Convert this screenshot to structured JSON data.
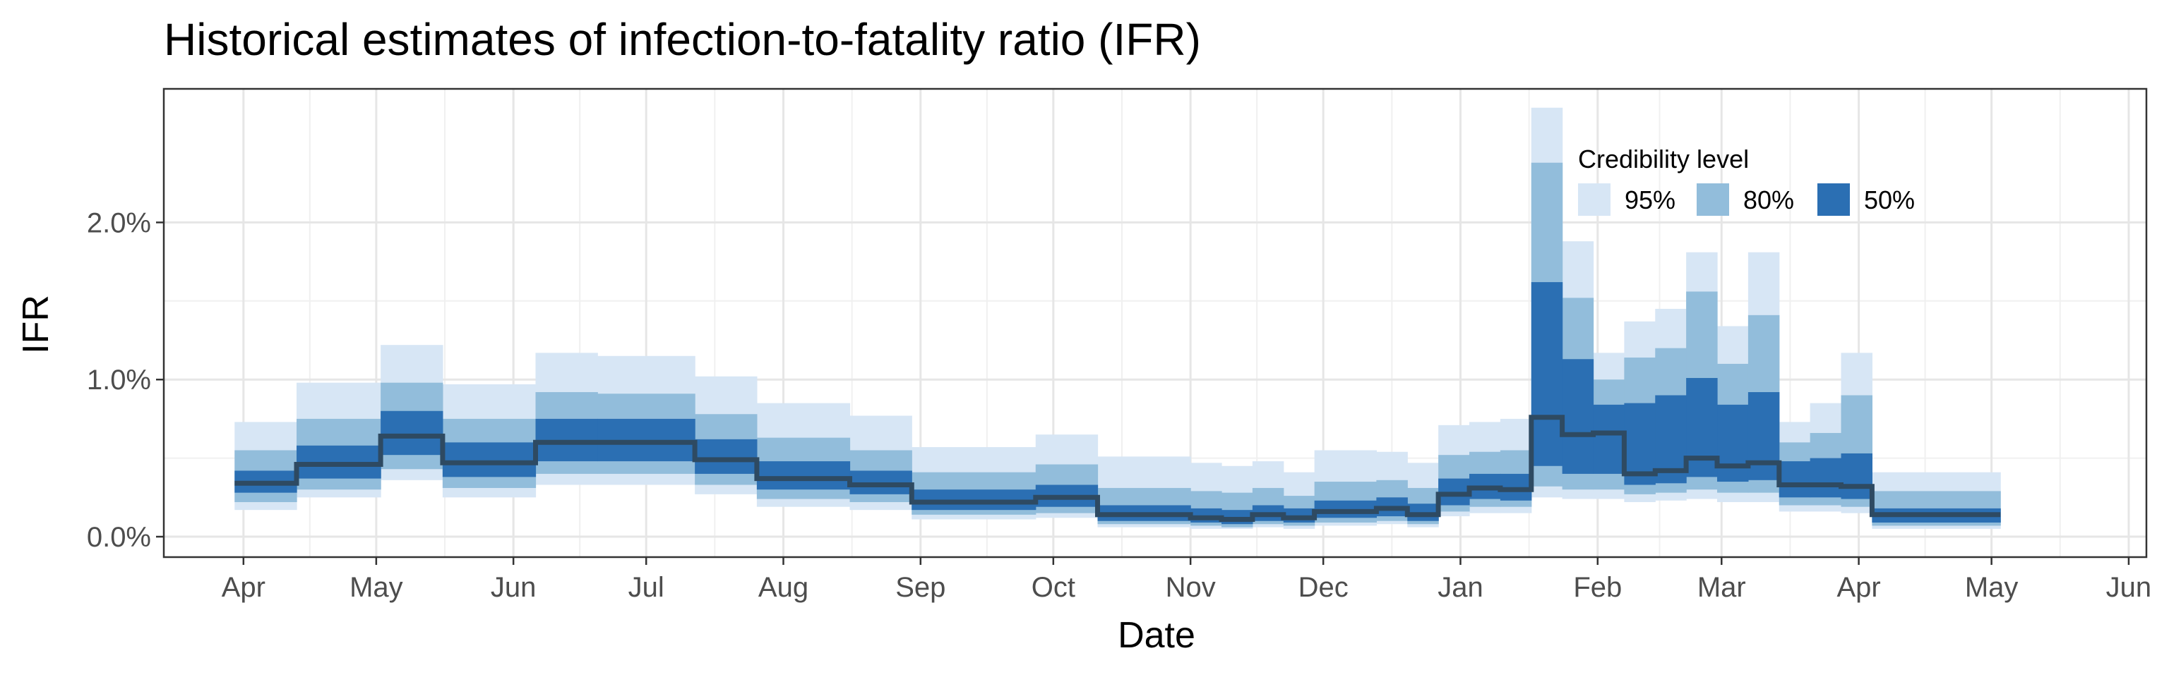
{
  "chart_data": {
    "type": "area",
    "title": "Historical estimates of infection-to-fatality ratio (IFR)",
    "xlabel": "Date",
    "ylabel": "IFR",
    "x_ticks": [
      {
        "label": "Apr",
        "date": "2020-04-01"
      },
      {
        "label": "May",
        "date": "2020-05-01"
      },
      {
        "label": "Jun",
        "date": "2020-06-01"
      },
      {
        "label": "Jul",
        "date": "2020-07-01"
      },
      {
        "label": "Aug",
        "date": "2020-08-01"
      },
      {
        "label": "Sep",
        "date": "2020-09-01"
      },
      {
        "label": "Oct",
        "date": "2020-10-01"
      },
      {
        "label": "Nov",
        "date": "2020-11-01"
      },
      {
        "label": "Dec",
        "date": "2020-12-01"
      },
      {
        "label": "Jan",
        "date": "2021-01-01"
      },
      {
        "label": "Feb",
        "date": "2021-02-01"
      },
      {
        "label": "Mar",
        "date": "2021-03-01"
      },
      {
        "label": "Apr",
        "date": "2021-04-01"
      },
      {
        "label": "May",
        "date": "2021-05-01"
      },
      {
        "label": "Jun",
        "date": "2021-06-01"
      }
    ],
    "xlim": [
      "2020-03-14",
      "2021-06-05"
    ],
    "y_ticks": [
      {
        "label": "0.0%",
        "value": 0.0
      },
      {
        "label": "1.0%",
        "value": 1.0
      },
      {
        "label": "2.0%",
        "value": 2.0
      }
    ],
    "ylim": [
      -0.13,
      2.85
    ],
    "y_unit": "%",
    "grid": true,
    "legend": {
      "title": "Credibility level",
      "position": "top-right inside",
      "items": [
        {
          "label": "95%",
          "color": "#d7e6f5"
        },
        {
          "label": "80%",
          "color": "#92bddb"
        },
        {
          "label": "50%",
          "color": "#2b6fb3"
        }
      ]
    },
    "median_color": "#2e4a62",
    "segments": [
      {
        "start": "2020-03-30",
        "end": "2020-04-13",
        "median": 0.34,
        "lo50": 0.28,
        "hi50": 0.42,
        "lo80": 0.22,
        "hi80": 0.55,
        "lo95": 0.17,
        "hi95": 0.73
      },
      {
        "start": "2020-04-13",
        "end": "2020-05-02",
        "median": 0.46,
        "lo50": 0.37,
        "hi50": 0.58,
        "lo80": 0.3,
        "hi80": 0.75,
        "lo95": 0.25,
        "hi95": 0.98
      },
      {
        "start": "2020-05-02",
        "end": "2020-05-16",
        "median": 0.64,
        "lo50": 0.52,
        "hi50": 0.8,
        "lo80": 0.43,
        "hi80": 0.98,
        "lo95": 0.36,
        "hi95": 1.22
      },
      {
        "start": "2020-05-16",
        "end": "2020-06-06",
        "median": 0.47,
        "lo50": 0.38,
        "hi50": 0.6,
        "lo80": 0.31,
        "hi80": 0.75,
        "lo95": 0.25,
        "hi95": 0.97
      },
      {
        "start": "2020-06-06",
        "end": "2020-06-20",
        "median": 0.6,
        "lo50": 0.48,
        "hi50": 0.75,
        "lo80": 0.4,
        "hi80": 0.92,
        "lo95": 0.33,
        "hi95": 1.17
      },
      {
        "start": "2020-06-20",
        "end": "2020-07-12",
        "median": 0.6,
        "lo50": 0.48,
        "hi50": 0.75,
        "lo80": 0.4,
        "hi80": 0.91,
        "lo95": 0.33,
        "hi95": 1.15
      },
      {
        "start": "2020-07-12",
        "end": "2020-07-26",
        "median": 0.49,
        "lo50": 0.4,
        "hi50": 0.62,
        "lo80": 0.33,
        "hi80": 0.78,
        "lo95": 0.27,
        "hi95": 1.02
      },
      {
        "start": "2020-07-26",
        "end": "2020-08-16",
        "median": 0.37,
        "lo50": 0.3,
        "hi50": 0.48,
        "lo80": 0.24,
        "hi80": 0.63,
        "lo95": 0.19,
        "hi95": 0.85
      },
      {
        "start": "2020-08-16",
        "end": "2020-08-30",
        "median": 0.33,
        "lo50": 0.27,
        "hi50": 0.42,
        "lo80": 0.22,
        "hi80": 0.55,
        "lo95": 0.17,
        "hi95": 0.77
      },
      {
        "start": "2020-08-30",
        "end": "2020-09-27",
        "median": 0.22,
        "lo50": 0.17,
        "hi50": 0.3,
        "lo80": 0.14,
        "hi80": 0.41,
        "lo95": 0.11,
        "hi95": 0.57
      },
      {
        "start": "2020-09-27",
        "end": "2020-10-11",
        "median": 0.25,
        "lo50": 0.19,
        "hi50": 0.33,
        "lo80": 0.15,
        "hi80": 0.46,
        "lo95": 0.12,
        "hi95": 0.65
      },
      {
        "start": "2020-10-11",
        "end": "2020-11-01",
        "median": 0.14,
        "lo50": 0.1,
        "hi50": 0.2,
        "lo80": 0.08,
        "hi80": 0.31,
        "lo95": 0.06,
        "hi95": 0.51
      },
      {
        "start": "2020-11-01",
        "end": "2020-11-08",
        "median": 0.12,
        "lo50": 0.09,
        "hi50": 0.18,
        "lo80": 0.07,
        "hi80": 0.29,
        "lo95": 0.05,
        "hi95": 0.47
      },
      {
        "start": "2020-11-08",
        "end": "2020-11-15",
        "median": 0.11,
        "lo50": 0.08,
        "hi50": 0.17,
        "lo80": 0.06,
        "hi80": 0.28,
        "lo95": 0.05,
        "hi95": 0.45
      },
      {
        "start": "2020-11-15",
        "end": "2020-11-22",
        "median": 0.14,
        "lo50": 0.1,
        "hi50": 0.2,
        "lo80": 0.08,
        "hi80": 0.31,
        "lo95": 0.06,
        "hi95": 0.48
      },
      {
        "start": "2020-11-22",
        "end": "2020-11-29",
        "median": 0.12,
        "lo50": 0.09,
        "hi50": 0.18,
        "lo80": 0.07,
        "hi80": 0.26,
        "lo95": 0.05,
        "hi95": 0.41
      },
      {
        "start": "2020-11-29",
        "end": "2020-12-13",
        "median": 0.16,
        "lo50": 0.12,
        "hi50": 0.23,
        "lo80": 0.09,
        "hi80": 0.35,
        "lo95": 0.07,
        "hi95": 0.55
      },
      {
        "start": "2020-12-13",
        "end": "2020-12-20",
        "median": 0.18,
        "lo50": 0.13,
        "hi50": 0.25,
        "lo80": 0.1,
        "hi80": 0.36,
        "lo95": 0.08,
        "hi95": 0.54
      },
      {
        "start": "2020-12-20",
        "end": "2020-12-27",
        "median": 0.14,
        "lo50": 0.1,
        "hi50": 0.21,
        "lo80": 0.08,
        "hi80": 0.31,
        "lo95": 0.06,
        "hi95": 0.47
      },
      {
        "start": "2020-12-27",
        "end": "2021-01-03",
        "median": 0.27,
        "lo50": 0.2,
        "hi50": 0.37,
        "lo80": 0.16,
        "hi80": 0.52,
        "lo95": 0.13,
        "hi95": 0.71
      },
      {
        "start": "2021-01-03",
        "end": "2021-01-10",
        "median": 0.31,
        "lo50": 0.24,
        "hi50": 0.4,
        "lo80": 0.19,
        "hi80": 0.54,
        "lo95": 0.15,
        "hi95": 0.73
      },
      {
        "start": "2021-01-10",
        "end": "2021-01-17",
        "median": 0.3,
        "lo50": 0.23,
        "hi50": 0.4,
        "lo80": 0.19,
        "hi80": 0.55,
        "lo95": 0.15,
        "hi95": 0.75
      },
      {
        "start": "2021-01-17",
        "end": "2021-01-24",
        "median": 0.76,
        "lo50": 0.45,
        "hi50": 1.62,
        "lo80": 0.32,
        "hi80": 2.38,
        "lo95": 0.25,
        "hi95": 2.73
      },
      {
        "start": "2021-01-24",
        "end": "2021-01-31",
        "median": 0.65,
        "lo50": 0.4,
        "hi50": 1.13,
        "lo80": 0.3,
        "hi80": 1.52,
        "lo95": 0.24,
        "hi95": 1.88
      },
      {
        "start": "2021-01-31",
        "end": "2021-02-07",
        "median": 0.66,
        "lo50": 0.4,
        "hi50": 0.84,
        "lo80": 0.3,
        "hi80": 1.0,
        "lo95": 0.24,
        "hi95": 1.17
      },
      {
        "start": "2021-02-07",
        "end": "2021-02-14",
        "median": 0.4,
        "lo50": 0.33,
        "hi50": 0.85,
        "lo80": 0.27,
        "hi80": 1.14,
        "lo95": 0.22,
        "hi95": 1.37
      },
      {
        "start": "2021-02-14",
        "end": "2021-02-21",
        "median": 0.42,
        "lo50": 0.34,
        "hi50": 0.9,
        "lo80": 0.28,
        "hi80": 1.2,
        "lo95": 0.23,
        "hi95": 1.45
      },
      {
        "start": "2021-02-21",
        "end": "2021-02-28",
        "median": 0.5,
        "lo50": 0.38,
        "hi50": 1.01,
        "lo80": 0.3,
        "hi80": 1.56,
        "lo95": 0.24,
        "hi95": 1.81
      },
      {
        "start": "2021-02-28",
        "end": "2021-03-07",
        "median": 0.45,
        "lo50": 0.35,
        "hi50": 0.84,
        "lo80": 0.28,
        "hi80": 1.1,
        "lo95": 0.22,
        "hi95": 1.34
      },
      {
        "start": "2021-03-07",
        "end": "2021-03-14",
        "median": 0.47,
        "lo50": 0.36,
        "hi50": 0.92,
        "lo80": 0.28,
        "hi80": 1.41,
        "lo95": 0.22,
        "hi95": 1.81
      },
      {
        "start": "2021-03-14",
        "end": "2021-03-21",
        "median": 0.33,
        "lo50": 0.25,
        "hi50": 0.48,
        "lo80": 0.2,
        "hi80": 0.6,
        "lo95": 0.16,
        "hi95": 0.73
      },
      {
        "start": "2021-03-21",
        "end": "2021-03-28",
        "median": 0.33,
        "lo50": 0.25,
        "hi50": 0.5,
        "lo80": 0.2,
        "hi80": 0.66,
        "lo95": 0.16,
        "hi95": 0.85
      },
      {
        "start": "2021-03-28",
        "end": "2021-04-04",
        "median": 0.32,
        "lo50": 0.24,
        "hi50": 0.53,
        "lo80": 0.19,
        "hi80": 0.9,
        "lo95": 0.15,
        "hi95": 1.17
      },
      {
        "start": "2021-04-04",
        "end": "2021-05-03",
        "median": 0.14,
        "lo50": 0.09,
        "hi50": 0.18,
        "lo80": 0.07,
        "hi80": 0.29,
        "lo95": 0.05,
        "hi95": 0.41
      }
    ]
  }
}
